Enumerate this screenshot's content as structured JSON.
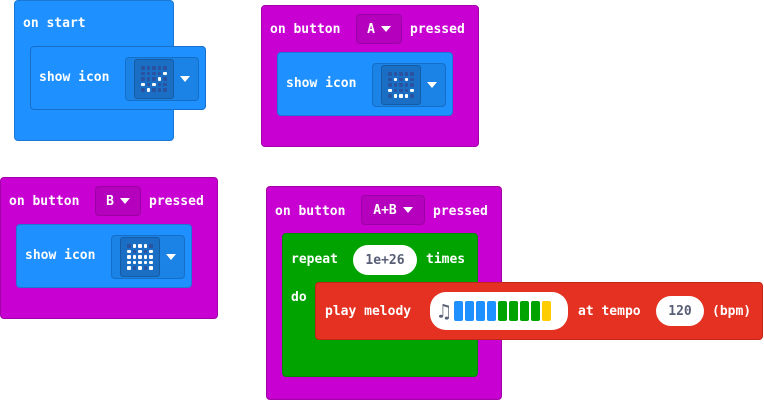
{
  "on_start": {
    "label": "on start",
    "statement": {
      "label": "show icon",
      "icon_name": "yes-icon",
      "pattern": [
        0,
        0,
        0,
        0,
        0,
        0,
        0,
        0,
        0,
        1,
        0,
        0,
        0,
        1,
        0,
        1,
        0,
        1,
        0,
        0,
        0,
        1,
        0,
        0,
        0
      ]
    }
  },
  "button_a": {
    "prefix": "on button",
    "button": "A",
    "suffix": "pressed",
    "statement": {
      "label": "show icon",
      "icon_name": "happy-icon",
      "pattern": [
        0,
        0,
        0,
        0,
        0,
        0,
        1,
        0,
        1,
        0,
        0,
        0,
        0,
        0,
        0,
        1,
        0,
        0,
        0,
        1,
        0,
        1,
        1,
        1,
        0
      ]
    }
  },
  "button_b": {
    "prefix": "on button",
    "button": "B",
    "suffix": "pressed",
    "statement": {
      "label": "show icon",
      "icon_name": "ghost-icon",
      "pattern": [
        0,
        1,
        1,
        1,
        0,
        1,
        0,
        1,
        0,
        1,
        1,
        1,
        1,
        1,
        1,
        1,
        1,
        1,
        1,
        1,
        1,
        0,
        1,
        0,
        1
      ]
    }
  },
  "button_ab": {
    "prefix": "on button",
    "button": "A+B",
    "suffix": "pressed",
    "repeat": {
      "label": "repeat",
      "count": "1e+26",
      "times_label": "times",
      "do_label": "do"
    },
    "melody": {
      "label": "play melody",
      "at_tempo_label": "at tempo",
      "tempo": "120",
      "bpm_label": "(bpm)",
      "icon_name": "music-note-icon",
      "note_colors": [
        "#1e90ff",
        "#1e90ff",
        "#1e90ff",
        "#1e90ff",
        "#00a300",
        "#00a300",
        "#00a300",
        "#00a300",
        "#ffcc00"
      ]
    }
  }
}
